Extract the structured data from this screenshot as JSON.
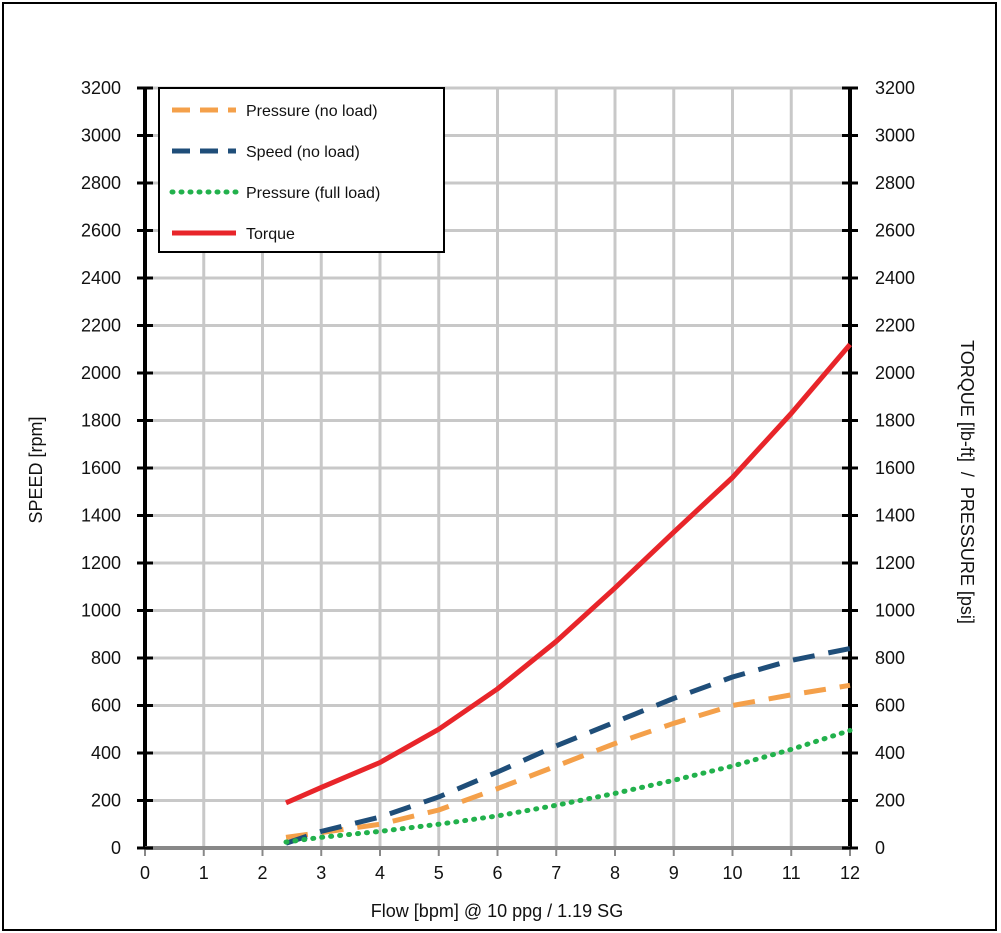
{
  "chart_data": {
    "type": "line",
    "title": "",
    "xlabel": "Flow [bpm] @ 10 ppg / 1.19 SG",
    "ylabel_left": "SPEED [rpm]",
    "ylabel_right": "TORQUE [lb-ft]  /  PRESSURE [psi]",
    "xlim": [
      0,
      12
    ],
    "ylim": [
      0,
      3200
    ],
    "x_ticks": [
      0,
      1,
      2,
      3,
      4,
      5,
      6,
      7,
      8,
      9,
      10,
      11,
      12
    ],
    "y_ticks": [
      0,
      200,
      400,
      600,
      800,
      1000,
      1200,
      1400,
      1600,
      1800,
      2000,
      2200,
      2400,
      2600,
      2800,
      3000,
      3200
    ],
    "grid": true,
    "legend_position": "top-left",
    "series": [
      {
        "name": "Pressure (no load)",
        "color": "#F4A04A",
        "style": "dashed",
        "x": [
          2.4,
          3,
          4,
          5,
          6,
          7,
          8,
          9,
          10,
          11,
          12
        ],
        "y": [
          45,
          65,
          100,
          160,
          250,
          345,
          440,
          525,
          600,
          645,
          685
        ]
      },
      {
        "name": "Speed (no load)",
        "color": "#1F4E79",
        "style": "dashed",
        "x": [
          2.4,
          3,
          4,
          5,
          6,
          7,
          8,
          9,
          10,
          11,
          12
        ],
        "y": [
          20,
          70,
          130,
          215,
          320,
          430,
          530,
          630,
          720,
          790,
          840
        ]
      },
      {
        "name": "Pressure (full load)",
        "color": "#22B14C",
        "style": "dotted",
        "x": [
          2.4,
          3,
          4,
          5,
          6,
          7,
          8,
          9,
          10,
          11,
          12
        ],
        "y": [
          25,
          45,
          70,
          100,
          135,
          180,
          230,
          285,
          345,
          415,
          495
        ]
      },
      {
        "name": "Torque",
        "color": "#E8252A",
        "style": "solid",
        "x": [
          2.4,
          3,
          4,
          5,
          6,
          7,
          8,
          9,
          10,
          11,
          12
        ],
        "y": [
          190,
          255,
          360,
          500,
          670,
          870,
          1095,
          1330,
          1560,
          1830,
          2120
        ]
      }
    ]
  }
}
